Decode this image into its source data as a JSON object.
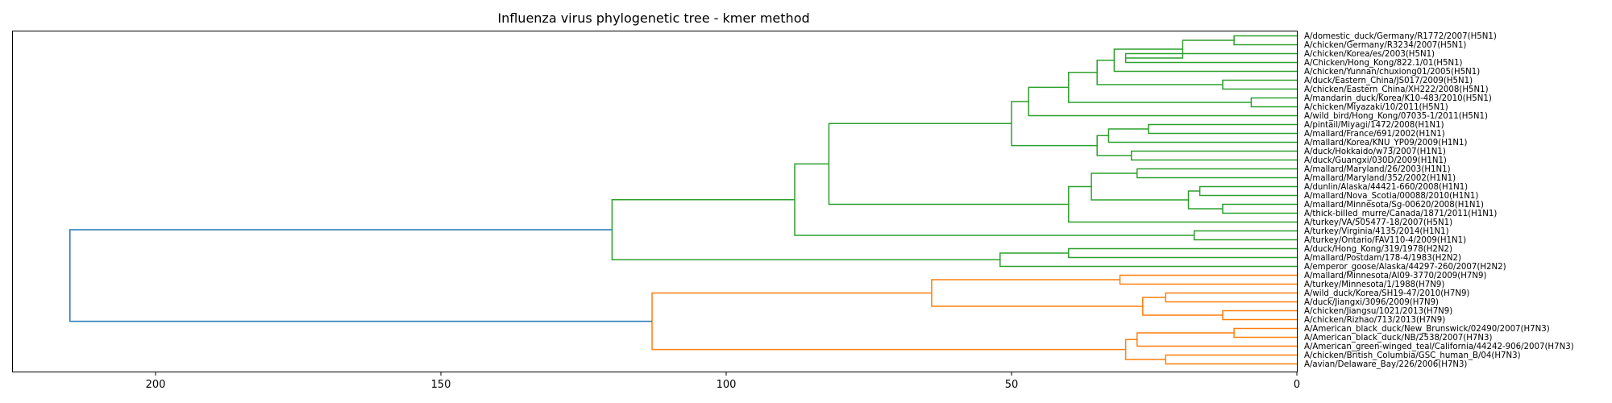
{
  "chart_data": {
    "type": "dendrogram",
    "title": "Influenza virus phylogenetic tree - kmer method",
    "orientation": "left",
    "xlim": [
      225,
      0
    ],
    "x_ticks": [
      200,
      150,
      100,
      50,
      0
    ],
    "colors": {
      "group1": "#2ca02c",
      "group2": "#ff7f0e",
      "root": "#1f77b4"
    },
    "leaves": [
      "A/domestic_duck/Germany/R1772/2007(H5N1)",
      "A/chicken/Germany/R3234/2007(H5N1)",
      "A/chicken/Korea/es/2003(H5N1)",
      "A/Chicken/Hong_Kong/822.1/01(H5N1)",
      "A/chicken/Yunnan/chuxiong01/2005(H5N1)",
      "A/duck/Eastern_China/JS017/2009(H5N1)",
      "A/chicken/Eastern_China/XH222/2008(H5N1)",
      "A/mandarin_duck/Korea/K10-483/2010(H5N1)",
      "A/chicken/Miyazaki/10/2011(H5N1)",
      "A/wild_bird/Hong_Kong/07035-1/2011(H5N1)",
      "A/pintail/Miyagi/1472/2008(H1N1)",
      "A/mallard/France/691/2002(H1N1)",
      "A/mallard/Korea/KNU_YP09/2009(H1N1)",
      "A/duck/Hokkaido/w73/2007(H1N1)",
      "A/duck/Guangxi/030D/2009(H1N1)",
      "A/mallard/Maryland/26/2003(H1N1)",
      "A/mallard/Maryland/352/2002(H1N1)",
      "A/dunlin/Alaska/44421-660/2008(H1N1)",
      "A/mallard/Nova_Scotia/00088/2010(H1N1)",
      "A/mallard/Minnesota/Sg-00620/2008(H1N1)",
      "A/thick-billed_murre/Canada/1871/2011(H1N1)",
      "A/turkey/VA/505477-18/2007(H5N1)",
      "A/turkey/Virginia/4135/2014(H1N1)",
      "A/turkey/Ontario/FAV110-4/2009(H1N1)",
      "A/duck/Hong_Kong/319/1978(H2N2)",
      "A/mallard/Postdam/178-4/1983(H2N2)",
      "A/emperor_goose/Alaska/44297-260/2007(H2N2)",
      "A/mallard/Minnesota/AI09-3770/2009(H7N9)",
      "A/turkey/Minnesota/1/1988(H7N9)",
      "A/wild_duck/Korea/SH19-47/2010(H7N9)",
      "A/duck/Jiangxi/3096/2009(H7N9)",
      "A/chicken/Jiangsu/1021/2013(H7N9)",
      "A/chicken/Rizhao/713/2013(H7N9)",
      "A/American_black_duck/New_Brunswick/02490/2007(H7N3)",
      "A/American_black_duck/NB/2538/2007(H7N3)",
      "A/American_green-winged_teal/California/44242-906/2007(H7N3)",
      "A/chicken/British_Columbia/GSC_human_B/04(H7N3)",
      "A/avian/Delaware_Bay/226/2006(H7N3)"
    ],
    "merges": [
      {
        "a": "L0",
        "b": "L1",
        "height": 11,
        "group": "group1"
      },
      {
        "a": "L2",
        "b": "L3",
        "height": 30,
        "group": "group1"
      },
      {
        "a": "M0",
        "b": "M1",
        "height": 20,
        "group": "group1"
      },
      {
        "a": "M2",
        "b": "L4",
        "height": 32,
        "group": "group1"
      },
      {
        "a": "L5",
        "b": "L6",
        "height": 13,
        "group": "group1"
      },
      {
        "a": "M3",
        "b": "M4",
        "height": 35,
        "group": "group1"
      },
      {
        "a": "L7",
        "b": "L8",
        "height": 8,
        "group": "group1"
      },
      {
        "a": "M5",
        "b": "M6",
        "height": 40,
        "group": "group1"
      },
      {
        "a": "M7",
        "b": "L9",
        "height": 47,
        "group": "group1"
      },
      {
        "a": "L10",
        "b": "L11",
        "height": 26,
        "group": "group1"
      },
      {
        "a": "M9",
        "b": "L12",
        "height": 33,
        "group": "group1"
      },
      {
        "a": "L13",
        "b": "L14",
        "height": 29,
        "group": "group1"
      },
      {
        "a": "M10",
        "b": "M11",
        "height": 35,
        "group": "group1"
      },
      {
        "a": "M8",
        "b": "M12",
        "height": 50,
        "group": "group1"
      },
      {
        "a": "L15",
        "b": "L16",
        "height": 28,
        "group": "group1"
      },
      {
        "a": "L17",
        "b": "L18",
        "height": 17,
        "group": "group1"
      },
      {
        "a": "L19",
        "b": "L20",
        "height": 13,
        "group": "group1"
      },
      {
        "a": "M15",
        "b": "M16",
        "height": 19,
        "group": "group1"
      },
      {
        "a": "M14",
        "b": "M17",
        "height": 36,
        "group": "group1"
      },
      {
        "a": "M18",
        "b": "L21",
        "height": 40,
        "group": "group1"
      },
      {
        "a": "M13",
        "b": "M19",
        "height": 82,
        "group": "group1"
      },
      {
        "a": "L22",
        "b": "L23",
        "height": 18,
        "group": "group1"
      },
      {
        "a": "M20",
        "b": "M21",
        "height": 88,
        "group": "group1"
      },
      {
        "a": "L24",
        "b": "L25",
        "height": 40,
        "group": "group1"
      },
      {
        "a": "M23",
        "b": "L26",
        "height": 52,
        "group": "group1"
      },
      {
        "a": "M22",
        "b": "M24",
        "height": 120,
        "group": "group1"
      },
      {
        "a": "L27",
        "b": "L28",
        "height": 31,
        "group": "group2"
      },
      {
        "a": "L29",
        "b": "L30",
        "height": 23,
        "group": "group2"
      },
      {
        "a": "L31",
        "b": "L32",
        "height": 13,
        "group": "group2"
      },
      {
        "a": "M27",
        "b": "M28",
        "height": 27,
        "group": "group2"
      },
      {
        "a": "M26",
        "b": "M29",
        "height": 64,
        "group": "group2"
      },
      {
        "a": "L33",
        "b": "L34",
        "height": 11,
        "group": "group2"
      },
      {
        "a": "M31",
        "b": "L35",
        "height": 28,
        "group": "group2"
      },
      {
        "a": "L36",
        "b": "L37",
        "height": 23,
        "group": "group2"
      },
      {
        "a": "M32",
        "b": "M33",
        "height": 30,
        "group": "group2"
      },
      {
        "a": "M30",
        "b": "M34",
        "height": 113,
        "group": "group2"
      },
      {
        "a": "M25",
        "b": "M35",
        "height": 215,
        "group": "root"
      }
    ]
  }
}
